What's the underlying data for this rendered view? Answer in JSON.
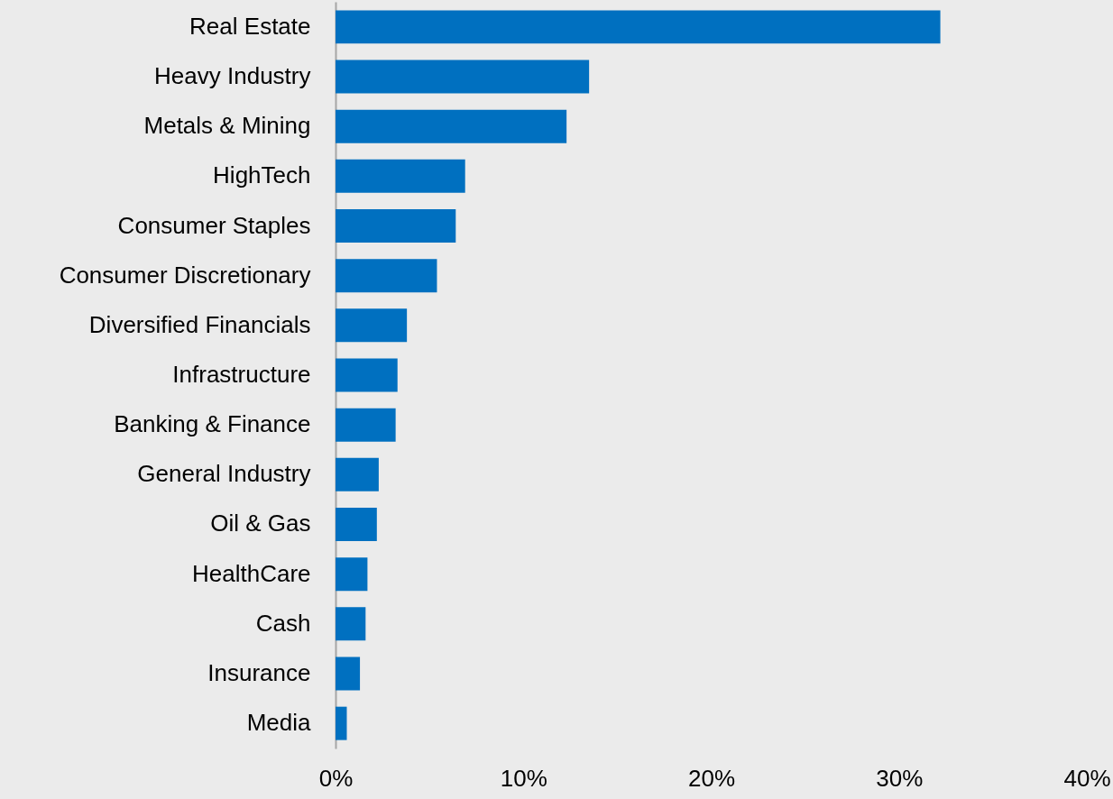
{
  "chart_data": {
    "type": "bar",
    "orientation": "horizontal",
    "categories": [
      "Real Estate",
      "Heavy Industry",
      "Metals & Mining",
      "HighTech",
      "Consumer Staples",
      "Consumer Discretionary",
      "Diversified Financials",
      "Infrastructure",
      "Banking & Finance",
      "General Industry",
      "Oil & Gas",
      "HealthCare",
      "Cash",
      "Insurance",
      "Media"
    ],
    "values": [
      32.2,
      13.5,
      12.3,
      6.9,
      6.4,
      5.4,
      3.8,
      3.3,
      3.2,
      2.3,
      2.2,
      1.7,
      1.6,
      1.3,
      0.6
    ],
    "color": "#0070c0",
    "xlim": [
      0,
      40
    ],
    "xticks": [
      {
        "value": 0,
        "label": "0%"
      },
      {
        "value": 10,
        "label": "10%"
      },
      {
        "value": 20,
        "label": "20%"
      },
      {
        "value": 30,
        "label": "30%"
      },
      {
        "value": 40,
        "label": "40%"
      }
    ],
    "grid": false
  }
}
